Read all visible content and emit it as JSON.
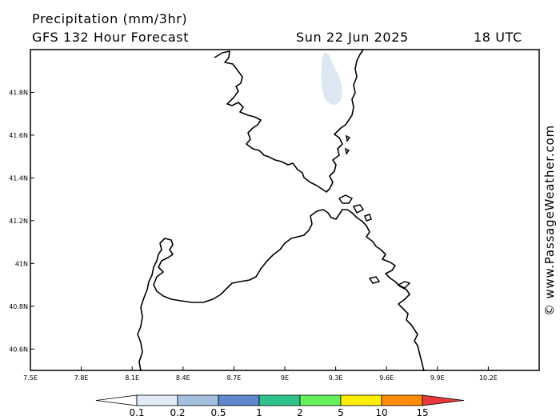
{
  "header": {
    "title": "Precipitation (mm/3hr)",
    "subtitle": "GFS 132 Hour Forecast",
    "date": "Sun 22 Jun 2025",
    "time": "18 UTC"
  },
  "credit": "© www.PassageWeather.com",
  "map": {
    "lat_ticks": [
      "41.8N",
      "41.6N",
      "41.4N",
      "41.2N",
      "41N",
      "40.8N",
      "40.6N"
    ],
    "lon_ticks": [
      "7.5E",
      "7.8E",
      "8.1E",
      "8.4E",
      "8.7E",
      "9E",
      "9.3E",
      "9.6E",
      "9.9E",
      "10.2E"
    ],
    "lon_range": [
      7.5,
      10.5
    ],
    "lat_range": [
      40.5,
      42.0
    ],
    "coast_color": "#000000",
    "precip_light_color": "#dde6f3"
  },
  "legend": {
    "labels": [
      "0.1",
      "0.2",
      "0.5",
      "1",
      "2",
      "5",
      "10",
      "15"
    ],
    "colors": [
      "#ffffff",
      "#e3ebf6",
      "#a5bfdf",
      "#5f86cf",
      "#2ec28c",
      "#66f05a",
      "#ffee00",
      "#ff8c00",
      "#e83a3a"
    ]
  }
}
